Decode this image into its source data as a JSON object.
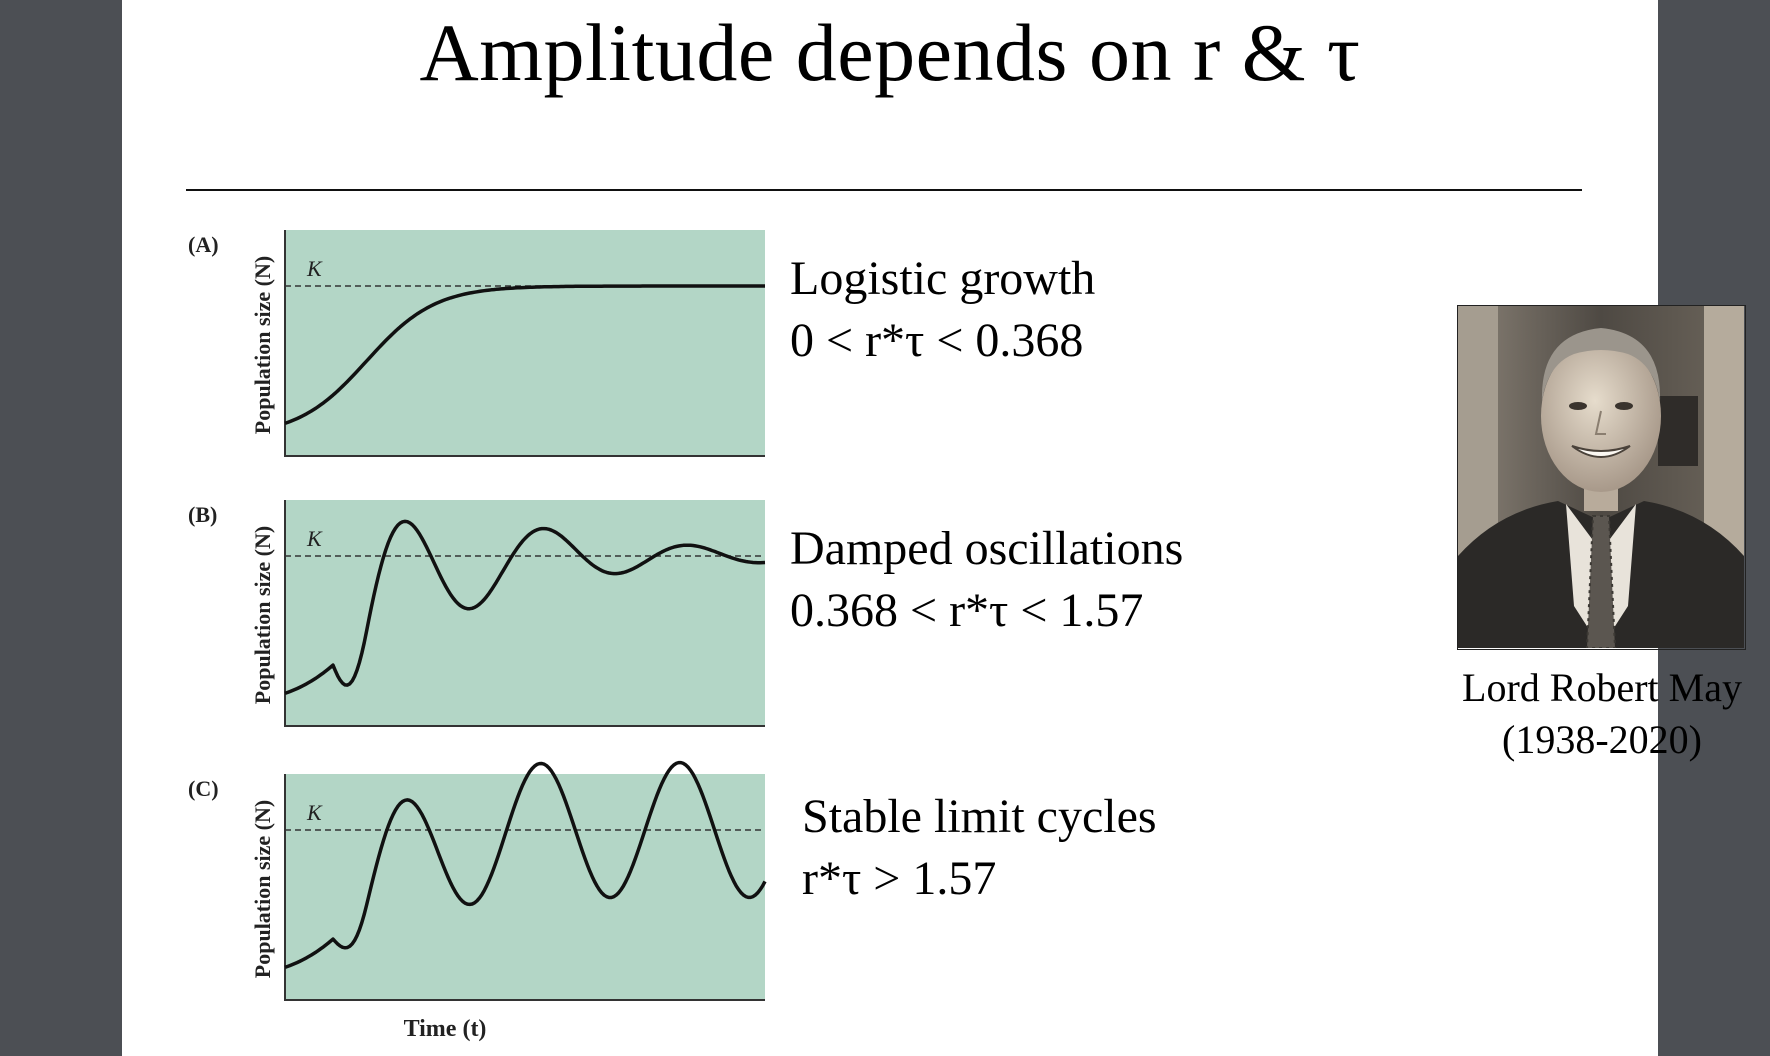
{
  "title": "Amplitude depends on r & τ",
  "panels": [
    {
      "letter": "(A)",
      "ylabel": "Population size (N)",
      "k_label": "K",
      "heading": "Logistic growth",
      "condition": "0 < r*τ  < 0.368",
      "pattern": "logistic"
    },
    {
      "letter": "(B)",
      "ylabel": "Population size (N)",
      "k_label": "K",
      "heading": "Damped oscillations",
      "condition": "0.368 < r*τ  < 1.57",
      "pattern": "damped"
    },
    {
      "letter": "(C)",
      "ylabel": "Population size (N)",
      "k_label": "K",
      "heading": "Stable limit cycles",
      "condition": "r*τ  > 1.57",
      "pattern": "limit-cycle"
    }
  ],
  "xlabel": "Time (t)",
  "photo": {
    "caption_name": "Lord Robert May",
    "caption_years": "(1938-2020)"
  },
  "colors": {
    "plot_bg": "#b3d6c6",
    "curve": "#111111",
    "page_bg": "#ffffff",
    "frame_bg": "#4c4f54"
  }
}
